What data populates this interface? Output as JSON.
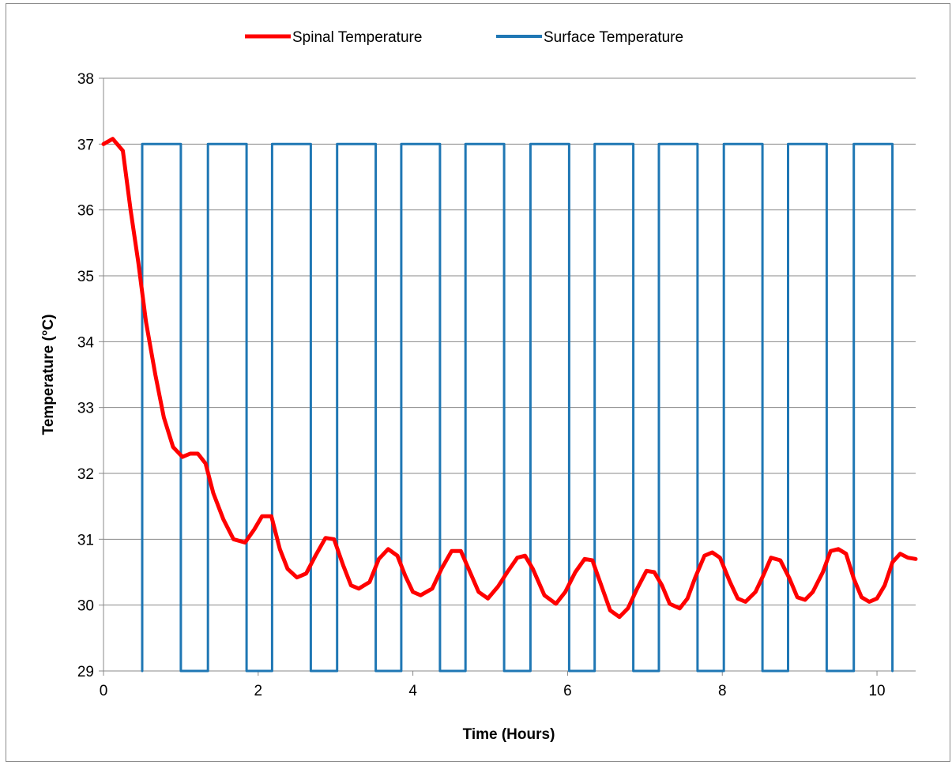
{
  "chart_data": {
    "type": "line",
    "title": "",
    "xlabel": "Time (Hours)",
    "ylabel": "Temperature (°C)",
    "xlim": [
      0,
      10.5
    ],
    "ylim": [
      29,
      38
    ],
    "xticks": [
      0,
      2,
      4,
      6,
      8,
      10
    ],
    "yticks": [
      29,
      30,
      31,
      32,
      33,
      34,
      35,
      36,
      37,
      38
    ],
    "grid": "horizontal",
    "legend_position": "top",
    "series": [
      {
        "name": "Spinal Temperature",
        "color": "#ff0000",
        "x": [
          0,
          0.12,
          0.25,
          0.35,
          0.45,
          0.55,
          0.67,
          0.78,
          0.9,
          1.02,
          1.12,
          1.22,
          1.32,
          1.42,
          1.55,
          1.68,
          1.83,
          1.95,
          2.05,
          2.17,
          2.28,
          2.38,
          2.5,
          2.62,
          2.74,
          2.87,
          2.98,
          3.1,
          3.2,
          3.3,
          3.44,
          3.56,
          3.68,
          3.8,
          3.9,
          4.0,
          4.1,
          4.25,
          4.37,
          4.5,
          4.62,
          4.72,
          4.85,
          4.97,
          5.1,
          5.22,
          5.35,
          5.45,
          5.55,
          5.7,
          5.85,
          5.97,
          6.1,
          6.22,
          6.32,
          6.45,
          6.55,
          6.67,
          6.78,
          6.9,
          7.02,
          7.12,
          7.22,
          7.32,
          7.45,
          7.55,
          7.65,
          7.77,
          7.87,
          7.97,
          8.1,
          8.2,
          8.3,
          8.43,
          8.53,
          8.63,
          8.75,
          8.87,
          8.97,
          9.07,
          9.17,
          9.3,
          9.4,
          9.5,
          9.6,
          9.7,
          9.8,
          9.9,
          10.0,
          10.1,
          10.2,
          10.3,
          10.4,
          10.5
        ],
        "values": [
          37.0,
          37.08,
          36.9,
          36.0,
          35.2,
          34.3,
          33.5,
          32.85,
          32.4,
          32.25,
          32.3,
          32.3,
          32.15,
          31.7,
          31.3,
          31.0,
          30.95,
          31.15,
          31.35,
          31.35,
          30.85,
          30.55,
          30.42,
          30.48,
          30.75,
          31.02,
          31.0,
          30.6,
          30.3,
          30.25,
          30.35,
          30.7,
          30.85,
          30.75,
          30.45,
          30.2,
          30.15,
          30.25,
          30.55,
          30.82,
          30.82,
          30.55,
          30.2,
          30.1,
          30.28,
          30.5,
          30.72,
          30.75,
          30.55,
          30.15,
          30.02,
          30.2,
          30.5,
          30.7,
          30.68,
          30.25,
          29.92,
          29.82,
          29.95,
          30.25,
          30.52,
          30.5,
          30.3,
          30.02,
          29.95,
          30.1,
          30.42,
          30.75,
          30.8,
          30.72,
          30.35,
          30.1,
          30.05,
          30.2,
          30.45,
          30.72,
          30.68,
          30.4,
          30.12,
          30.08,
          30.2,
          30.5,
          30.82,
          30.85,
          30.78,
          30.4,
          30.12,
          30.05,
          30.1,
          30.3,
          30.65,
          30.78,
          30.72,
          30.7
        ]
      },
      {
        "name": "Surface Temperature",
        "color": "#1f77b4",
        "x": [
          0.5,
          0.5,
          1.0,
          1.0,
          1.35,
          1.35,
          1.85,
          1.85,
          2.18,
          2.18,
          2.68,
          2.68,
          3.02,
          3.02,
          3.52,
          3.52,
          3.85,
          3.85,
          4.35,
          4.35,
          4.68,
          4.68,
          5.18,
          5.18,
          5.52,
          5.52,
          6.02,
          6.02,
          6.35,
          6.35,
          6.85,
          6.85,
          7.18,
          7.18,
          7.68,
          7.68,
          8.02,
          8.02,
          8.52,
          8.52,
          8.85,
          8.85,
          9.35,
          9.35,
          9.7,
          9.7,
          10.2,
          10.2
        ],
        "values": [
          29,
          37,
          37,
          29,
          29,
          37,
          37,
          29,
          29,
          37,
          37,
          29,
          29,
          37,
          37,
          29,
          29,
          37,
          37,
          29,
          29,
          37,
          37,
          29,
          29,
          37,
          37,
          29,
          29,
          37,
          37,
          29,
          29,
          37,
          37,
          29,
          29,
          37,
          37,
          29,
          29,
          37,
          37,
          29,
          29,
          37,
          37,
          29
        ]
      }
    ]
  }
}
